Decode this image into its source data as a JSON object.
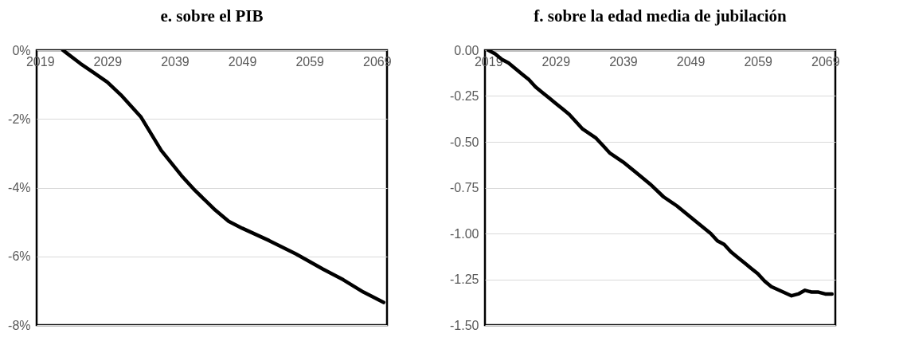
{
  "chart_data": [
    {
      "type": "line",
      "title": "e. sobre el PIB",
      "xlim": [
        2018.5,
        2070.5
      ],
      "xticks": [
        2019,
        2029,
        2039,
        2049,
        2059,
        2069
      ],
      "ylim": [
        -8,
        0
      ],
      "yticks": [
        {
          "value": 0,
          "label": "0%"
        },
        {
          "value": -2,
          "label": "-2%"
        },
        {
          "value": -4,
          "label": "-4%"
        },
        {
          "value": -6,
          "label": "-6%"
        },
        {
          "value": -8,
          "label": "-8%"
        }
      ],
      "grid": "y",
      "marker": "none",
      "line_style": "solid",
      "series": [
        {
          "color": "#000000",
          "x": [
            2022.4,
            2023,
            2025,
            2027,
            2029,
            2031,
            2034,
            2037,
            2040,
            2042,
            2045,
            2047,
            2049,
            2053,
            2057,
            2061,
            2064,
            2067,
            2070
          ],
          "values": [
            0,
            -0.09,
            -0.39,
            -0.66,
            -0.93,
            -1.3,
            -1.95,
            -2.92,
            -3.65,
            -4.08,
            -4.65,
            -4.98,
            -5.18,
            -5.54,
            -5.93,
            -6.37,
            -6.68,
            -7.04,
            -7.34
          ]
        }
      ]
    },
    {
      "type": "line",
      "title": "f. sobre la edad media de jubilación",
      "xlim": [
        2018.5,
        2070.5
      ],
      "xticks": [
        2019,
        2029,
        2039,
        2049,
        2059,
        2069
      ],
      "ylim": [
        -1.5,
        0
      ],
      "yticks": [
        {
          "value": 0,
          "label": "0.00"
        },
        {
          "value": -0.25,
          "label": "-0.25"
        },
        {
          "value": -0.5,
          "label": "-0.50"
        },
        {
          "value": -0.75,
          "label": "-0.75"
        },
        {
          "value": -1,
          "label": "-1.00"
        },
        {
          "value": -1.25,
          "label": "-1.25"
        },
        {
          "value": -1.5,
          "label": "-1.50"
        }
      ],
      "grid": "y",
      "marker": "none",
      "line_style": "solid",
      "series": [
        {
          "color": "#000000",
          "x": [
            2019,
            2020,
            2021,
            2022,
            2023,
            2024,
            2025,
            2026,
            2027,
            2028,
            2029,
            2030,
            2031,
            2032,
            2033,
            2035,
            2036,
            2037,
            2039,
            2041,
            2043,
            2045,
            2047,
            2050,
            2052,
            2053,
            2054,
            2055,
            2056,
            2057,
            2058,
            2059,
            2060,
            2061,
            2064,
            2065,
            2066,
            2067,
            2068,
            2069,
            2070
          ],
          "values": [
            0,
            -0.02,
            -0.05,
            -0.07,
            -0.1,
            -0.13,
            -0.16,
            -0.2,
            -0.23,
            -0.26,
            -0.29,
            -0.32,
            -0.35,
            -0.39,
            -0.43,
            -0.48,
            -0.52,
            -0.56,
            -0.61,
            -0.67,
            -0.73,
            -0.8,
            -0.85,
            -0.94,
            -1.0,
            -1.04,
            -1.06,
            -1.1,
            -1.13,
            -1.16,
            -1.19,
            -1.22,
            -1.26,
            -1.29,
            -1.34,
            -1.33,
            -1.31,
            -1.32,
            -1.32,
            -1.33,
            -1.33
          ]
        }
      ]
    }
  ]
}
